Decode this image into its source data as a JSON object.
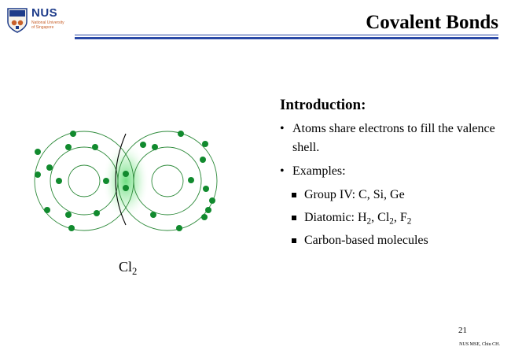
{
  "logo": {
    "name": "NUS",
    "subtitle_line1": "National University",
    "subtitle_line2": "of Singapore"
  },
  "slide": {
    "title": "Covalent Bonds"
  },
  "diagram": {
    "molecule_label": "Cl",
    "molecule_subscript": "2"
  },
  "content": {
    "heading": "Introduction:",
    "bullets": [
      {
        "text": "Atoms share electrons to fill the valence shell."
      },
      {
        "text": "Examples:"
      }
    ],
    "sub_bullets": [
      {
        "text": "Group IV: C, Si, Ge"
      },
      {
        "prefix": "Diatomic: H",
        "s1": "2",
        "m1": ", Cl",
        "s2": "2",
        "m2": ", F",
        "s3": "2"
      },
      {
        "text": "Carbon-based molecules"
      }
    ]
  },
  "footer": {
    "page_number": "21",
    "credit": "NUS MSE, Chiu CH."
  },
  "colors": {
    "electron": "#118a2e",
    "orbit": "#2d8a3a",
    "rule": "#2a49a6",
    "logo_blue": "#1d3b8a",
    "logo_orange": "#c8602a"
  }
}
